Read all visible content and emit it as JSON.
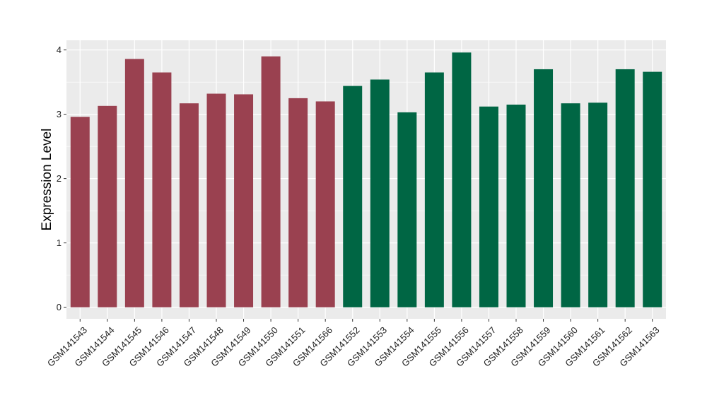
{
  "chart_data": {
    "type": "bar",
    "title": "",
    "xlabel": "",
    "ylabel": "Expression Level",
    "ylim": [
      -0.18,
      4.15
    ],
    "yticks": [
      0,
      1,
      2,
      3,
      4
    ],
    "grid": true,
    "legend": "none",
    "categories": [
      "GSM141543",
      "GSM141544",
      "GSM141545",
      "GSM141546",
      "GSM141547",
      "GSM141548",
      "GSM141549",
      "GSM141550",
      "GSM141551",
      "GSM141566",
      "GSM141552",
      "GSM141553",
      "GSM141554",
      "GSM141555",
      "GSM141556",
      "GSM141557",
      "GSM141558",
      "GSM141559",
      "GSM141560",
      "GSM141561",
      "GSM141562",
      "GSM141563"
    ],
    "values": [
      2.96,
      3.13,
      3.86,
      3.65,
      3.17,
      3.32,
      3.31,
      3.9,
      3.25,
      3.2,
      3.44,
      3.54,
      3.03,
      3.65,
      3.96,
      3.12,
      3.15,
      3.7,
      3.17,
      3.18,
      3.7,
      3.66
    ],
    "bar_group_colors": [
      "#9a4150",
      "#9a4150",
      "#9a4150",
      "#9a4150",
      "#9a4150",
      "#9a4150",
      "#9a4150",
      "#9a4150",
      "#9a4150",
      "#9a4150",
      "#006644",
      "#006644",
      "#006644",
      "#006644",
      "#006644",
      "#006644",
      "#006644",
      "#006644",
      "#006644",
      "#006644",
      "#006644",
      "#006644"
    ],
    "panel_color": "#ebebeb",
    "grid_color": "#ffffff"
  }
}
